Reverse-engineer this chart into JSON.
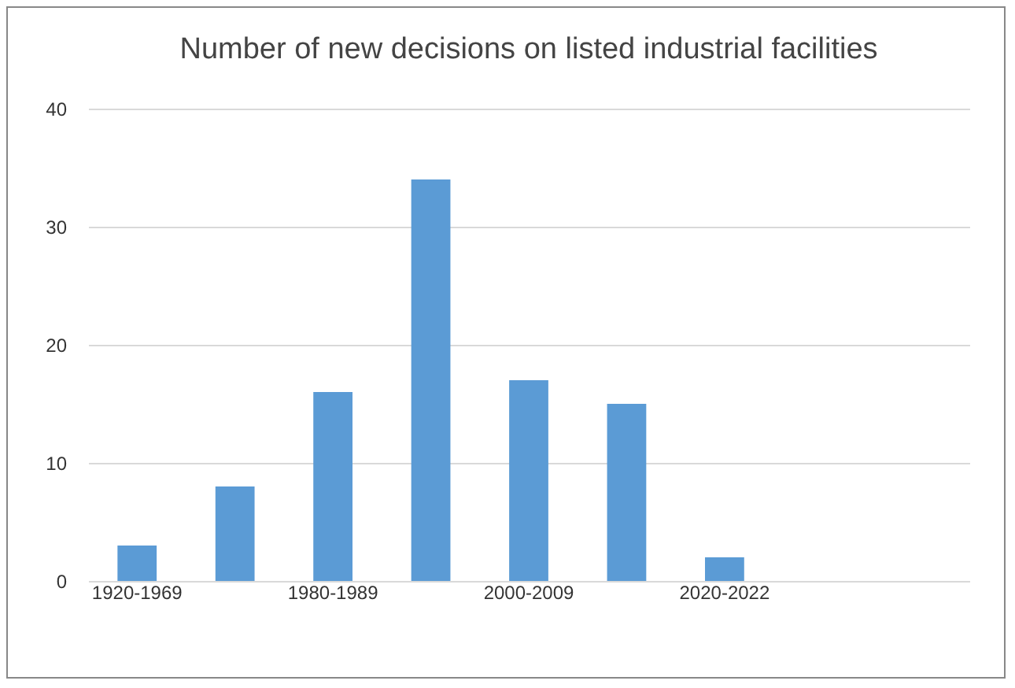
{
  "chart_data": {
    "type": "bar",
    "title": "Number of new decisions on listed industrial facilities",
    "categories": [
      "1920-1969",
      null,
      "1980-1989",
      null,
      "2000-2009",
      null,
      "2020-2022",
      null,
      null
    ],
    "values": [
      3,
      8,
      16,
      34,
      17,
      15,
      2,
      null,
      null
    ],
    "color": "#5b9bd5",
    "ylim": [
      0,
      40
    ],
    "yticks": [
      0,
      10,
      20,
      30,
      40
    ],
    "grid": "y"
  }
}
